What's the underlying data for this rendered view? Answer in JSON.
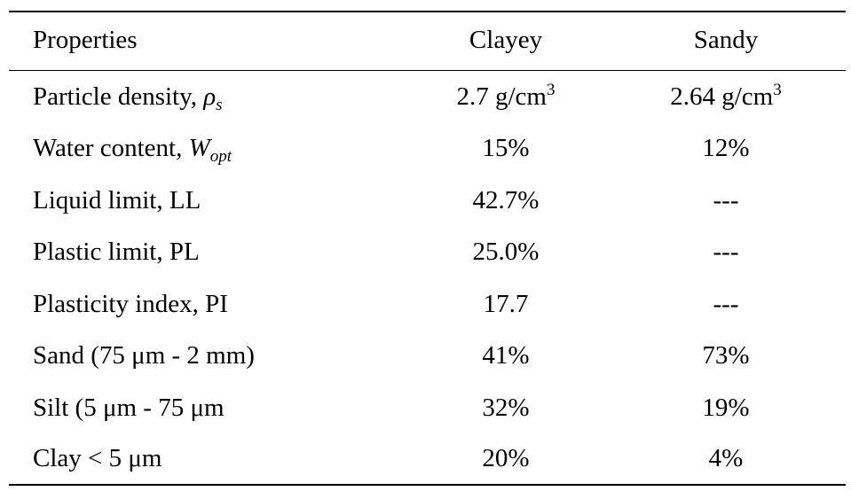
{
  "table": {
    "header": {
      "properties": "Properties",
      "clayey": "Clayey",
      "sandy": "Sandy"
    },
    "rows": [
      {
        "label": "Particle density, ",
        "symbol": "ρ",
        "symbol_sub": "s",
        "clayey": "2.7 g/cm",
        "clayey_sup": "3",
        "sandy": "2.64 g/cm",
        "sandy_sup": "3"
      },
      {
        "label": "Water content, ",
        "symbol": "W",
        "symbol_sub": "opt",
        "clayey": "15%",
        "sandy": "12%"
      },
      {
        "label": "Liquid limit, LL",
        "clayey": "42.7%",
        "sandy": "---"
      },
      {
        "label": "Plastic limit, PL",
        "clayey": "25.0%",
        "sandy": "---"
      },
      {
        "label": "Plasticity index, PI",
        "clayey": "17.7",
        "sandy": "---"
      },
      {
        "label": "Sand (75 μm - 2 mm)",
        "clayey": "41%",
        "sandy": "73%"
      },
      {
        "label": "Silt (5 μm - 75 μm",
        "clayey": "32%",
        "sandy": "19%"
      },
      {
        "label": "Clay < 5 μm",
        "clayey": "20%",
        "sandy": "4%"
      }
    ]
  }
}
